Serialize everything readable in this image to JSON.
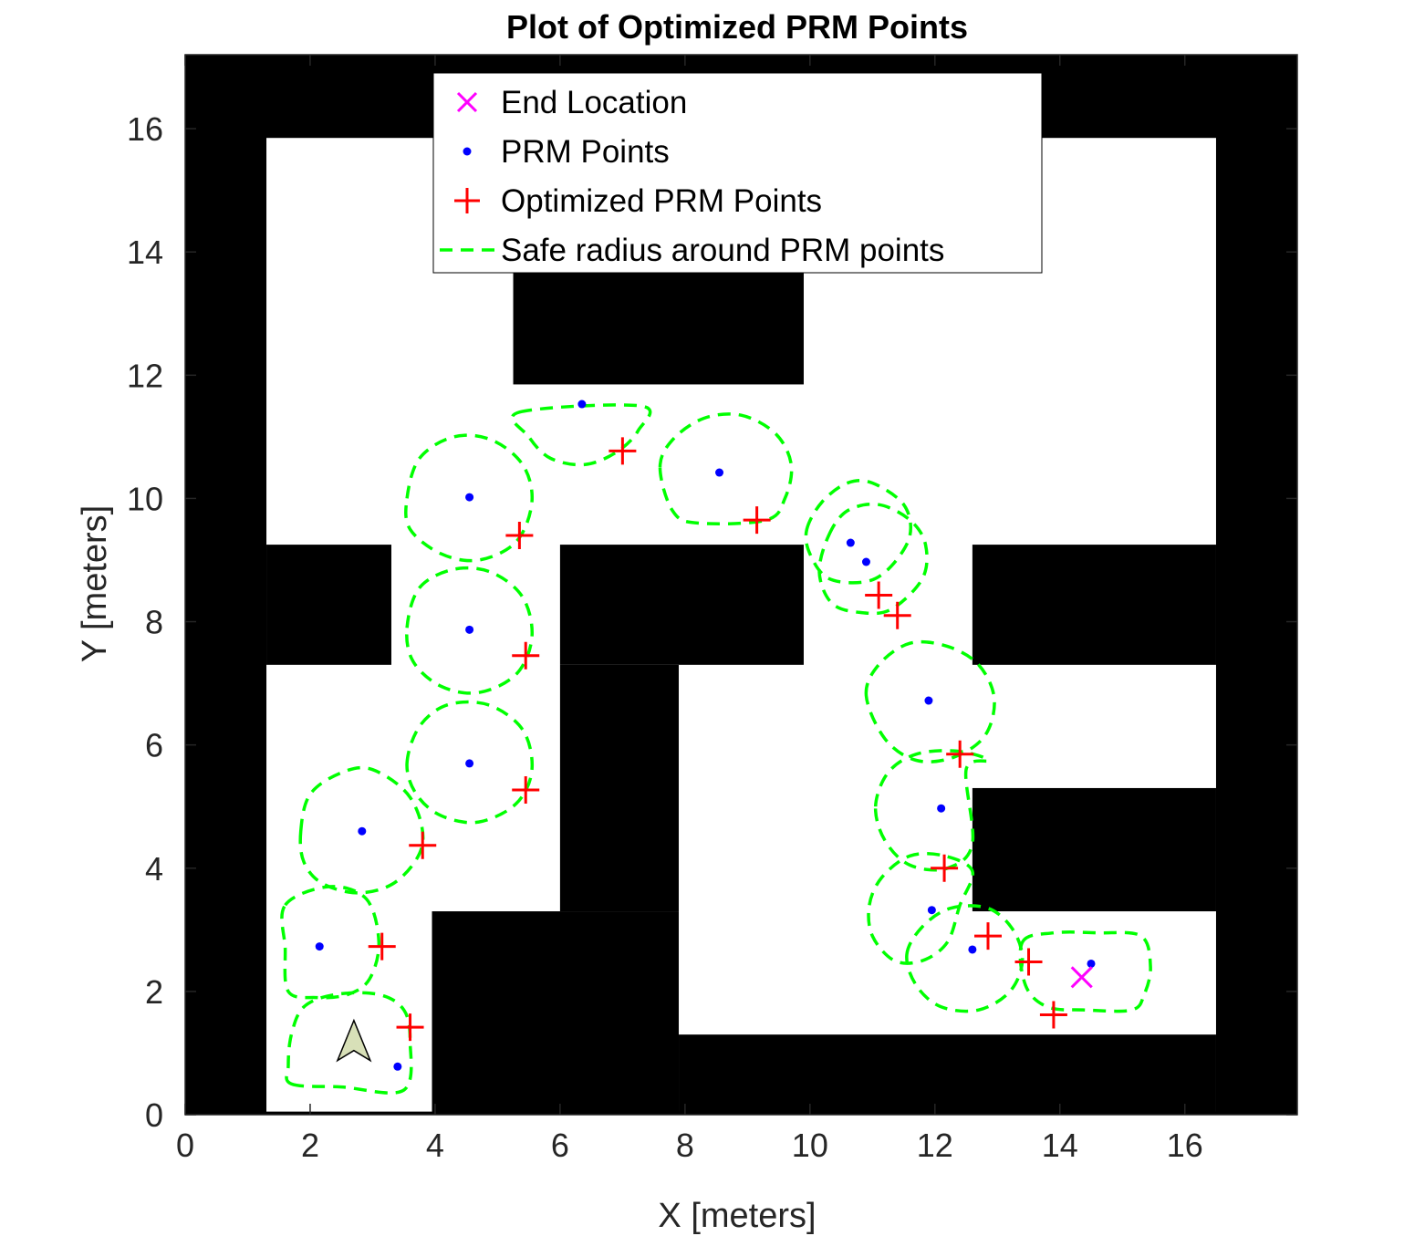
{
  "chart_data": {
    "type": "scatter",
    "title": "Plot of Optimized PRM Points",
    "xlabel": "X [meters]",
    "ylabel": "Y [meters]",
    "xlim": [
      0,
      17.8
    ],
    "ylim": [
      0,
      17.2
    ],
    "xticks": [
      0,
      2,
      4,
      6,
      8,
      10,
      12,
      14,
      16
    ],
    "yticks": [
      0,
      2,
      4,
      6,
      8,
      10,
      12,
      14,
      16
    ],
    "grid": false,
    "legend_position": "top-center",
    "legend": [
      {
        "label": "End Location",
        "marker": "x",
        "color": "#ff00ff"
      },
      {
        "label": "PRM Points",
        "marker": "dot",
        "color": "#0000ff"
      },
      {
        "label": "Optimized PRM Points",
        "marker": "plus",
        "color": "#ff0000"
      },
      {
        "label": "Safe radius around PRM points",
        "marker": "dashed-line",
        "color": "#00ff00"
      }
    ],
    "colors": {
      "obstacle": "#000000",
      "free": "#ffffff",
      "prm": "#0000ff",
      "optimized": "#ff0000",
      "safe_radius": "#00ff00",
      "end": "#ff00ff",
      "vehicle": "#d8e0b8"
    },
    "obstacles": [
      {
        "x0": 0,
        "x1": 17.8,
        "y0": 15.85,
        "y1": 17.2
      },
      {
        "x0": 0,
        "x1": 1.3,
        "y0": 0,
        "y1": 17.2
      },
      {
        "x0": 16.5,
        "x1": 17.8,
        "y0": 0,
        "y1": 17.2
      },
      {
        "x0": 0,
        "x1": 17.8,
        "y0": 0,
        "y1": 0.05
      },
      {
        "x0": 1.3,
        "x1": 3.3,
        "y0": 7.3,
        "y1": 9.25
      },
      {
        "x0": 5.25,
        "x1": 9.9,
        "y0": 11.85,
        "y1": 15.85
      },
      {
        "x0": 6.0,
        "x1": 9.9,
        "y0": 7.3,
        "y1": 9.25
      },
      {
        "x0": 6.0,
        "x1": 7.9,
        "y0": 3.3,
        "y1": 7.3
      },
      {
        "x0": 3.95,
        "x1": 7.9,
        "y0": 0,
        "y1": 3.3
      },
      {
        "x0": 7.9,
        "x1": 16.5,
        "y0": 0,
        "y1": 1.3
      },
      {
        "x0": 12.6,
        "x1": 16.5,
        "y0": 7.3,
        "y1": 9.25
      },
      {
        "x0": 12.6,
        "x1": 16.5,
        "y0": 3.3,
        "y1": 5.3
      }
    ],
    "prm_points": [
      {
        "x": 3.4,
        "y": 0.78
      },
      {
        "x": 2.15,
        "y": 2.73
      },
      {
        "x": 2.83,
        "y": 4.6
      },
      {
        "x": 4.55,
        "y": 5.7
      },
      {
        "x": 4.55,
        "y": 7.87
      },
      {
        "x": 4.55,
        "y": 10.02
      },
      {
        "x": 6.35,
        "y": 11.53
      },
      {
        "x": 8.55,
        "y": 10.42
      },
      {
        "x": 10.65,
        "y": 9.28
      },
      {
        "x": 10.9,
        "y": 8.97
      },
      {
        "x": 11.9,
        "y": 6.72
      },
      {
        "x": 12.1,
        "y": 4.97
      },
      {
        "x": 11.95,
        "y": 3.32
      },
      {
        "x": 12.6,
        "y": 2.68
      },
      {
        "x": 14.5,
        "y": 2.45
      }
    ],
    "optimized_points": [
      {
        "x": 3.6,
        "y": 1.42
      },
      {
        "x": 3.15,
        "y": 2.73
      },
      {
        "x": 3.8,
        "y": 4.37
      },
      {
        "x": 5.45,
        "y": 5.27
      },
      {
        "x": 5.45,
        "y": 7.45
      },
      {
        "x": 5.35,
        "y": 9.4
      },
      {
        "x": 7.0,
        "y": 10.77
      },
      {
        "x": 9.15,
        "y": 9.65
      },
      {
        "x": 11.1,
        "y": 8.43
      },
      {
        "x": 11.4,
        "y": 8.1
      },
      {
        "x": 12.4,
        "y": 5.85
      },
      {
        "x": 12.15,
        "y": 4.0
      },
      {
        "x": 12.85,
        "y": 2.9
      },
      {
        "x": 13.5,
        "y": 2.48
      },
      {
        "x": 13.9,
        "y": 1.62
      }
    ],
    "end_location": {
      "x": 14.35,
      "y": 2.23
    },
    "vehicle": {
      "x": 2.7,
      "y": 1.1,
      "heading": "north"
    },
    "safe_regions": [
      {
        "points": [
          [
            1.7,
            0.5
          ],
          [
            2.5,
            0.45
          ],
          [
            3.5,
            0.4
          ],
          [
            3.6,
            1.2
          ],
          [
            3.5,
            1.7
          ],
          [
            3.1,
            1.95
          ],
          [
            2.4,
            1.95
          ],
          [
            1.9,
            1.75
          ],
          [
            1.7,
            1.3
          ],
          [
            1.65,
            0.8
          ]
        ]
      },
      {
        "points": [
          [
            1.6,
            3.4
          ],
          [
            2.3,
            3.7
          ],
          [
            2.9,
            3.5
          ],
          [
            3.1,
            2.8
          ],
          [
            2.95,
            2.2
          ],
          [
            2.6,
            1.95
          ],
          [
            2.1,
            1.9
          ],
          [
            1.65,
            2.0
          ],
          [
            1.6,
            2.7
          ]
        ]
      },
      {
        "points": [
          [
            1.85,
            4.6
          ],
          [
            1.9,
            4.1
          ],
          [
            2.2,
            3.75
          ],
          [
            2.8,
            3.6
          ],
          [
            3.4,
            3.8
          ],
          [
            3.8,
            4.4
          ],
          [
            3.6,
            5.15
          ],
          [
            3.0,
            5.6
          ],
          [
            2.5,
            5.55
          ],
          [
            2.0,
            5.2
          ]
        ]
      },
      {
        "points": [
          [
            3.55,
            5.7
          ],
          [
            3.75,
            6.3
          ],
          [
            4.2,
            6.65
          ],
          [
            4.85,
            6.65
          ],
          [
            5.4,
            6.25
          ],
          [
            5.55,
            5.6
          ],
          [
            5.3,
            5.05
          ],
          [
            4.7,
            4.75
          ],
          [
            4.1,
            4.85
          ],
          [
            3.7,
            5.2
          ]
        ]
      },
      {
        "points": [
          [
            3.55,
            7.9
          ],
          [
            3.75,
            8.55
          ],
          [
            4.3,
            8.85
          ],
          [
            4.9,
            8.8
          ],
          [
            5.4,
            8.4
          ],
          [
            5.55,
            7.75
          ],
          [
            5.3,
            7.15
          ],
          [
            4.7,
            6.85
          ],
          [
            4.1,
            6.95
          ],
          [
            3.65,
            7.35
          ]
        ]
      },
      {
        "points": [
          [
            3.55,
            10.0
          ],
          [
            3.75,
            10.65
          ],
          [
            4.3,
            11.0
          ],
          [
            4.9,
            10.95
          ],
          [
            5.4,
            10.55
          ],
          [
            5.55,
            9.95
          ],
          [
            5.3,
            9.3
          ],
          [
            4.7,
            9.0
          ],
          [
            4.1,
            9.1
          ],
          [
            3.6,
            9.5
          ]
        ]
      },
      {
        "points": [
          [
            5.35,
            11.4
          ],
          [
            7.3,
            11.5
          ],
          [
            7.25,
            11.1
          ],
          [
            6.9,
            10.75
          ],
          [
            6.4,
            10.55
          ],
          [
            5.85,
            10.65
          ],
          [
            5.5,
            11.0
          ]
        ]
      },
      {
        "points": [
          [
            7.6,
            10.5
          ],
          [
            7.8,
            10.95
          ],
          [
            8.3,
            11.3
          ],
          [
            8.9,
            11.35
          ],
          [
            9.45,
            11.05
          ],
          [
            9.7,
            10.55
          ],
          [
            9.6,
            10.0
          ],
          [
            9.3,
            9.65
          ],
          [
            8.2,
            9.6
          ],
          [
            7.8,
            9.8
          ]
        ]
      },
      {
        "points": [
          [
            9.95,
            9.5
          ],
          [
            10.2,
            9.95
          ],
          [
            10.6,
            10.25
          ],
          [
            11.0,
            10.25
          ],
          [
            11.5,
            9.9
          ],
          [
            11.6,
            9.4
          ],
          [
            11.3,
            8.9
          ],
          [
            10.9,
            8.65
          ],
          [
            10.3,
            8.7
          ],
          [
            10.0,
            9.1
          ]
        ]
      },
      {
        "points": [
          [
            10.3,
            9.4
          ],
          [
            10.6,
            9.8
          ],
          [
            11.1,
            9.9
          ],
          [
            11.6,
            9.65
          ],
          [
            11.85,
            9.25
          ],
          [
            11.8,
            8.7
          ],
          [
            11.3,
            8.2
          ],
          [
            10.8,
            8.15
          ],
          [
            10.35,
            8.3
          ],
          [
            10.15,
            8.8
          ]
        ]
      },
      {
        "points": [
          [
            10.9,
            6.8
          ],
          [
            11.1,
            7.3
          ],
          [
            11.6,
            7.65
          ],
          [
            12.2,
            7.6
          ],
          [
            12.7,
            7.3
          ],
          [
            12.95,
            6.75
          ],
          [
            12.8,
            6.15
          ],
          [
            12.3,
            5.8
          ],
          [
            11.7,
            5.75
          ],
          [
            11.2,
            6.1
          ]
        ]
      },
      {
        "points": [
          [
            11.05,
            5.0
          ],
          [
            11.25,
            5.55
          ],
          [
            11.7,
            5.85
          ],
          [
            12.35,
            5.9
          ],
          [
            12.85,
            5.75
          ],
          [
            12.5,
            5.6
          ],
          [
            12.6,
            4.4
          ],
          [
            12.2,
            4.0
          ],
          [
            11.6,
            4.05
          ],
          [
            11.2,
            4.45
          ]
        ]
      },
      {
        "points": [
          [
            10.95,
            3.4
          ],
          [
            11.15,
            3.85
          ],
          [
            11.6,
            4.2
          ],
          [
            12.15,
            4.2
          ],
          [
            12.6,
            3.95
          ],
          [
            12.4,
            3.4
          ],
          [
            12.2,
            2.8
          ],
          [
            11.8,
            2.5
          ],
          [
            11.35,
            2.5
          ],
          [
            11.0,
            2.9
          ]
        ]
      },
      {
        "points": [
          [
            11.55,
            2.6
          ],
          [
            11.8,
            3.05
          ],
          [
            12.25,
            3.35
          ],
          [
            12.85,
            3.35
          ],
          [
            13.25,
            3.0
          ],
          [
            13.4,
            2.5
          ],
          [
            13.2,
            2.0
          ],
          [
            12.7,
            1.7
          ],
          [
            12.1,
            1.75
          ],
          [
            11.7,
            2.1
          ]
        ]
      },
      {
        "points": [
          [
            13.4,
            2.8
          ],
          [
            13.9,
            2.95
          ],
          [
            14.6,
            2.95
          ],
          [
            15.3,
            2.9
          ],
          [
            15.45,
            2.4
          ],
          [
            15.35,
            1.95
          ],
          [
            15.15,
            1.7
          ],
          [
            14.4,
            1.7
          ],
          [
            13.8,
            1.75
          ],
          [
            13.45,
            2.1
          ]
        ]
      }
    ]
  }
}
